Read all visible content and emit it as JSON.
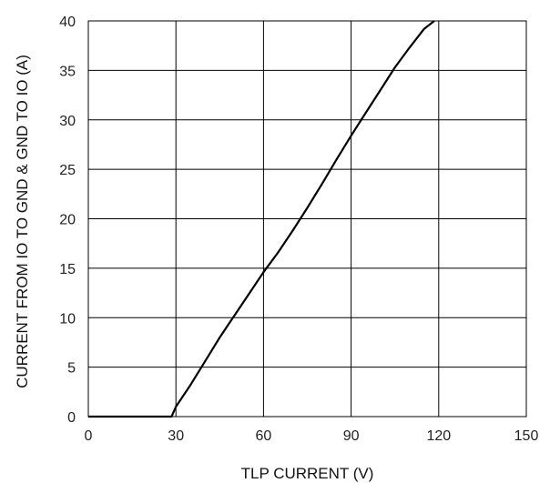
{
  "chart_data": {
    "type": "line",
    "title": "",
    "xlabel": "TLP CURRENT (V)",
    "ylabel": "CURRENT FROM IO TO GND & GND TO IO (A)",
    "xlim": [
      0,
      150
    ],
    "ylim": [
      0,
      40
    ],
    "x_ticks": [
      "0",
      "30",
      "60",
      "90",
      "120",
      "150"
    ],
    "y_ticks": [
      "0",
      "5",
      "10",
      "15",
      "20",
      "25",
      "30",
      "35",
      "40"
    ],
    "grid": true,
    "legend": "none",
    "series": [
      {
        "color": "#000000",
        "x": [
          0,
          28.5,
          30,
          35,
          40,
          45,
          50,
          55,
          60,
          65,
          70,
          75,
          80,
          85,
          90,
          95,
          100,
          105,
          110,
          115,
          118.5
        ],
        "y": [
          0,
          0,
          1,
          3.2,
          5.6,
          8,
          10.2,
          12.4,
          14.6,
          16.6,
          18.8,
          21.1,
          23.5,
          26,
          28.4,
          30.7,
          33,
          35.3,
          37.3,
          39.2,
          40
        ]
      }
    ]
  }
}
